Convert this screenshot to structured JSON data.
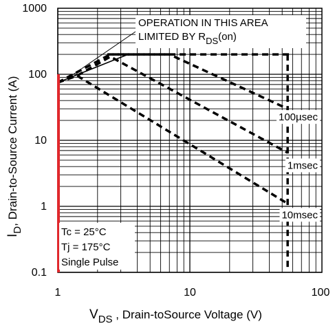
{
  "chart_data": {
    "type": "line",
    "xscale": "log",
    "yscale": "log",
    "xlim": [
      1,
      100
    ],
    "ylim": [
      0.1,
      1000
    ],
    "x_tick_labels": [
      "1",
      "10",
      "100"
    ],
    "y_tick_labels": [
      "0.1",
      "1",
      "10",
      "100",
      "1000"
    ],
    "grid": true,
    "xlabel": {
      "main": "V",
      "sub": "DS",
      "rest": " , Drain-toSource Voltage (V)"
    },
    "ylabel": {
      "main": "I",
      "sub": "D",
      "rest": ",  Drain-to-Source Current (A)"
    },
    "annotation": {
      "line1": "OPERATION IN THIS AREA",
      "line2_main": "LIMITED BY R",
      "line2_sub": "DS",
      "line2_rest": "(on)"
    },
    "conditions": [
      "Tc = 25°C",
      "Tj = 175°C",
      "Single Pulse"
    ],
    "series": [
      {
        "name": "100µsec",
        "x": [
          1,
          2.5,
          7,
          55
        ],
        "y": [
          75,
          200,
          200,
          30
        ]
      },
      {
        "name": "1msec",
        "x": [
          1,
          1.4,
          2.5,
          55
        ],
        "y": [
          75,
          95,
          185,
          6.5
        ]
      },
      {
        "name": "10msec",
        "x": [
          1,
          1.4,
          55
        ],
        "y": [
          75,
          95,
          1.1
        ]
      }
    ],
    "limits": {
      "current_limit_A": 200,
      "voltage_limit_V": 55,
      "rds_on_line": {
        "x": [
          1,
          3.4
        ],
        "y": [
          75,
          200
        ]
      }
    },
    "colors": {
      "vertical_axis_highlight": "#e0282c",
      "lines": "#000000"
    }
  }
}
